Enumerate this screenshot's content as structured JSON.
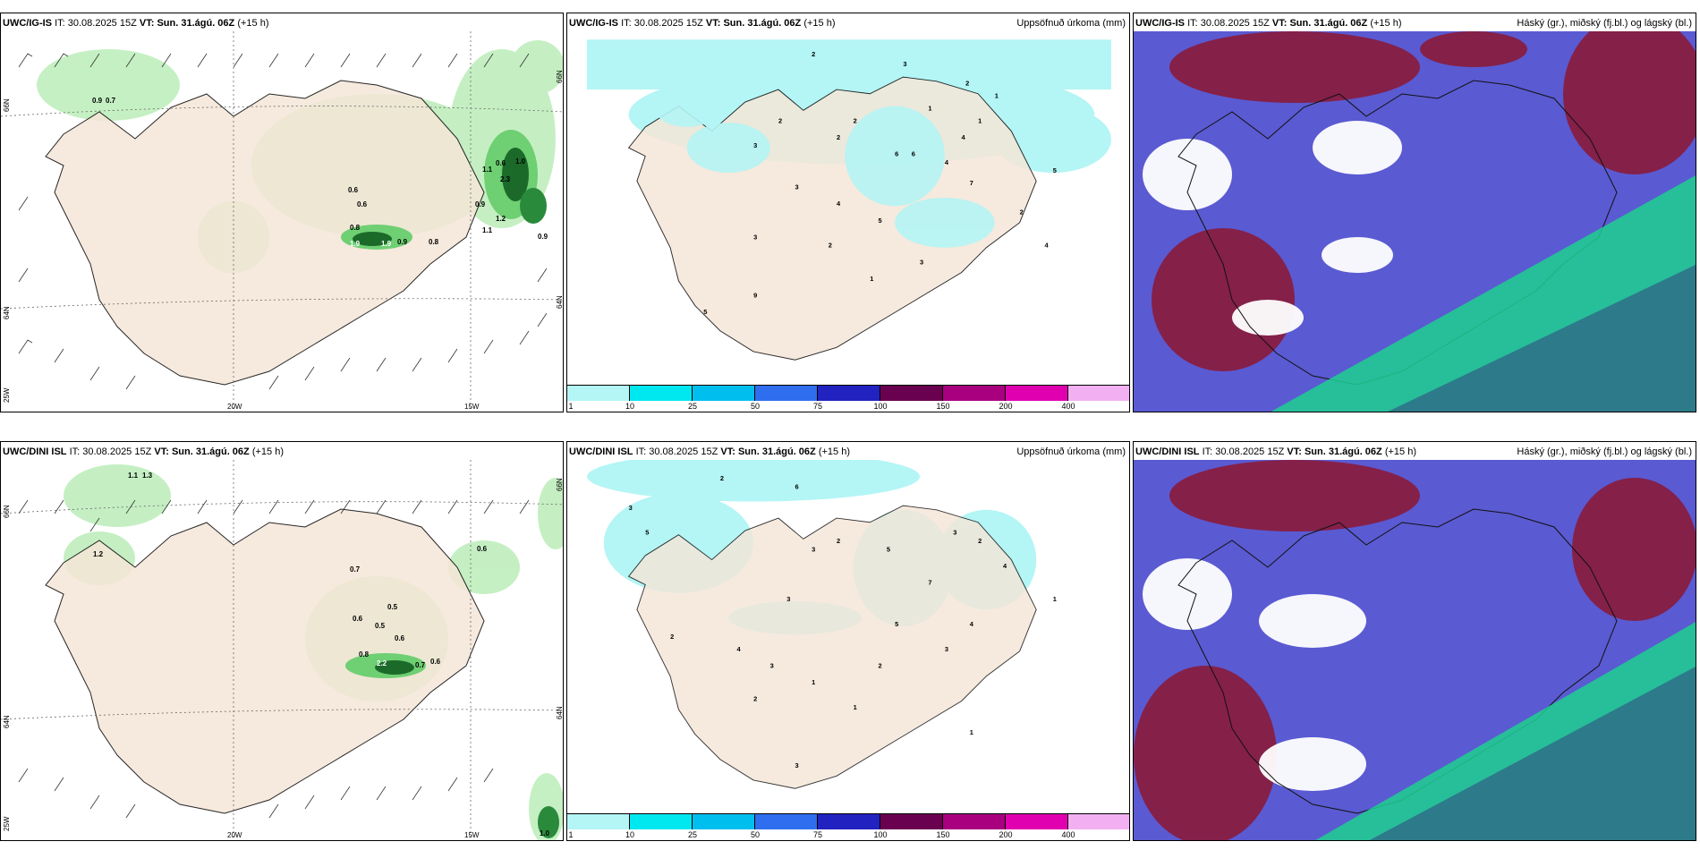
{
  "panels": [
    {
      "model": "UWC/IG-IS",
      "it_label": "IT:",
      "it_value": "30.08.2025 15Z",
      "vt_label": "VT:",
      "vt_value": "Sun. 31.ágú. 06Z",
      "lead": "(+15 h)",
      "right_title": "",
      "axis": {
        "lat_top": "66N",
        "lat_mid": "64N",
        "lon_left": "25W",
        "lon_mid": "20W",
        "lon_right": "15W",
        "lat_right_top": "66N",
        "lat_right_mid": "64N"
      },
      "values": [
        "0.9",
        "0.7",
        "0.6",
        "0.6",
        "0.8",
        "1.9",
        "1.9",
        "0.9",
        "0.8",
        "0.6",
        "1.0",
        "1.1",
        "2.3",
        "0.9",
        "1.2",
        "1.1",
        "0.9"
      ]
    },
    {
      "model": "UWC/IG-IS",
      "it_label": "IT:",
      "it_value": "30.08.2025 15Z",
      "vt_label": "VT:",
      "vt_value": "Sun. 31.ágú. 06Z",
      "lead": "(+15 h)",
      "right_title": "Uppsöfnuð úrkoma (mm)",
      "values": [
        "2",
        "3",
        "2",
        "1",
        "1",
        "2",
        "2",
        "1",
        "2",
        "3",
        "4",
        "6",
        "6",
        "4",
        "7",
        "5",
        "3",
        "2",
        "4",
        "5",
        "3",
        "9",
        "5",
        "1",
        "2",
        "3",
        "4"
      ]
    },
    {
      "model": "UWC/IG-IS",
      "it_label": "IT:",
      "it_value": "30.08.2025 15Z",
      "vt_label": "VT:",
      "vt_value": "Sun. 31.ágú. 06Z",
      "lead": "(+15 h)",
      "right_title": "Háský (gr.), miðský (fj.bl.) og lágský (bl.)"
    },
    {
      "model": "UWC/DINI ISL",
      "it_label": "IT:",
      "it_value": "30.08.2025 15Z",
      "vt_label": "VT:",
      "vt_value": "Sun. 31.ágú. 06Z",
      "lead": "(+15 h)",
      "right_title": "",
      "axis": {
        "lat_top": "66N",
        "lat_mid": "64N",
        "lon_left": "25W",
        "lon_mid": "20W",
        "lon_right": "15W",
        "lat_right_top": "66N",
        "lat_right_mid": "64N"
      },
      "values": [
        "1.1",
        "1.3",
        "1.2",
        "0.7",
        "0.5",
        "0.6",
        "0.5",
        "0.6",
        "0.8",
        "2.2",
        "0.7",
        "0.6",
        "0.6",
        "1.0"
      ]
    },
    {
      "model": "UWC/DINI ISL",
      "it_label": "IT:",
      "it_value": "30.08.2025 15Z",
      "vt_label": "VT:",
      "vt_value": "Sun. 31.ágú. 06Z",
      "lead": "(+15 h)",
      "right_title": "Uppsöfnuð úrkoma (mm)",
      "values": [
        "2",
        "3",
        "5",
        "6",
        "3",
        "2",
        "5",
        "7",
        "3",
        "2",
        "4",
        "1",
        "3",
        "5",
        "2",
        "4",
        "3",
        "1",
        "2",
        "3",
        "4",
        "2",
        "1",
        "1",
        "3"
      ]
    },
    {
      "model": "UWC/DINI ISL",
      "it_label": "IT:",
      "it_value": "30.08.2025 15Z",
      "vt_label": "VT:",
      "vt_value": "Sun. 31.ágú. 06Z",
      "lead": "(+15 h)",
      "right_title": "Háský (gr.), miðský (fj.bl.) og lágský (bl.)"
    }
  ],
  "colorbar": {
    "labels": [
      "1",
      "10",
      "25",
      "50",
      "75",
      "100",
      "150",
      "200",
      "400"
    ],
    "colors": [
      "#b4f5f5",
      "#00e8ef",
      "#00bfef",
      "#2f6eef",
      "#2222c0",
      "#6a0050",
      "#a8007f",
      "#e000b0",
      "#f2b0f2"
    ]
  },
  "colors": {
    "land": "#f5e6d8",
    "precip_light": "#bfeebd",
    "precip_mid": "#6fcf73",
    "precip_dark": "#1b6a2a",
    "sky_blue": "#5a5ad2",
    "sky_red": "#8a1a3a",
    "sky_green": "#1fd090",
    "sky_teal": "#2d7a8a"
  }
}
